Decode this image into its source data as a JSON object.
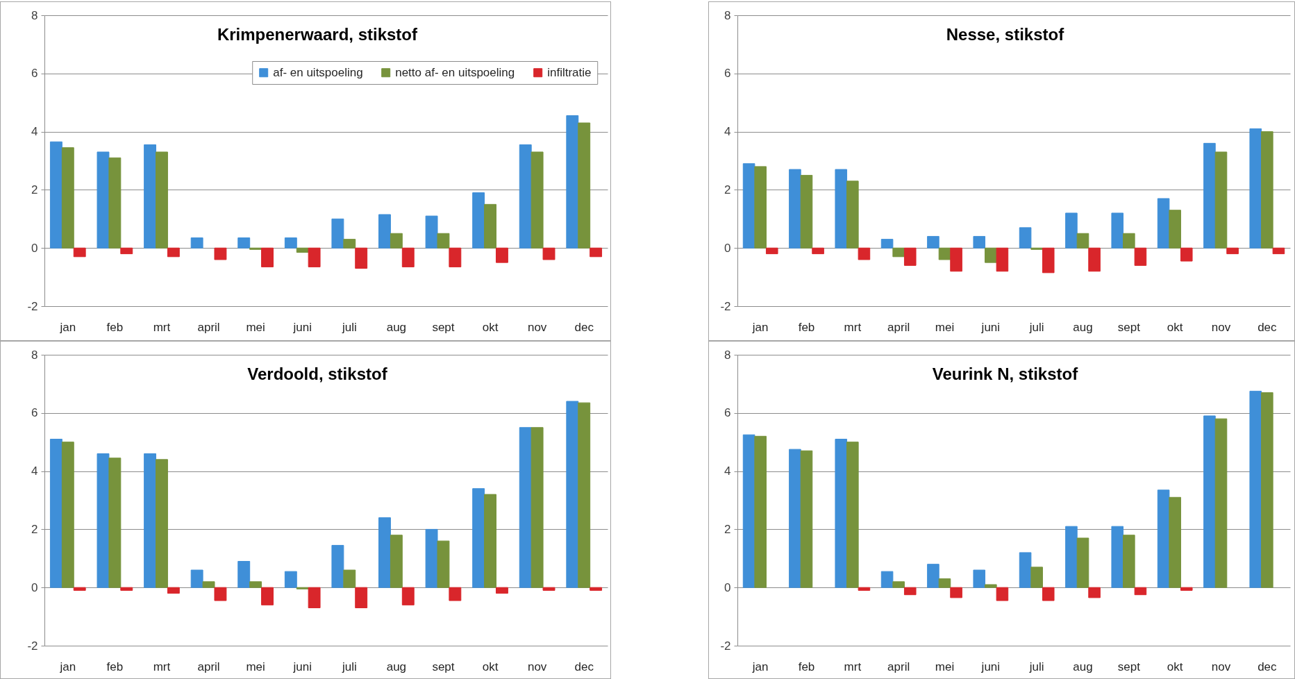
{
  "chart_data": [
    {
      "type": "bar",
      "title": "Krimpenerwaard, stikstof",
      "categories": [
        "jan",
        "feb",
        "mrt",
        "april",
        "mei",
        "juni",
        "juli",
        "aug",
        "sept",
        "okt",
        "nov",
        "dec"
      ],
      "series": [
        {
          "name": "af- en uitspoeling",
          "color": "#3f8fd8",
          "values": [
            3.65,
            3.3,
            3.55,
            0.35,
            0.35,
            0.35,
            1.0,
            1.15,
            1.1,
            1.9,
            3.55,
            4.55
          ]
        },
        {
          "name": "netto af- en uitspoeling",
          "color": "#77933c",
          "values": [
            3.45,
            3.1,
            3.3,
            null,
            -0.05,
            -0.15,
            0.3,
            0.5,
            0.5,
            1.5,
            3.3,
            4.3
          ]
        },
        {
          "name": "infiltratie",
          "color": "#d9262b",
          "values": [
            -0.3,
            -0.2,
            -0.3,
            -0.4,
            -0.65,
            -0.65,
            -0.7,
            -0.65,
            -0.65,
            -0.5,
            -0.4,
            -0.3
          ]
        }
      ],
      "ylim": [
        -2,
        8
      ],
      "yticks": [
        -2,
        0,
        2,
        4,
        6,
        8
      ],
      "grid": "y",
      "legend": "top right"
    },
    {
      "type": "bar",
      "title": "Nesse, stikstof",
      "categories": [
        "jan",
        "feb",
        "mrt",
        "april",
        "mei",
        "juni",
        "juli",
        "aug",
        "sept",
        "okt",
        "nov",
        "dec"
      ],
      "series": [
        {
          "color": "#3f8fd8",
          "values": [
            2.9,
            2.7,
            2.7,
            0.3,
            0.4,
            0.4,
            0.7,
            1.2,
            1.2,
            1.7,
            3.6,
            4.1
          ]
        },
        {
          "color": "#77933c",
          "values": [
            2.8,
            2.5,
            2.3,
            -0.3,
            -0.4,
            -0.5,
            -0.05,
            0.5,
            0.5,
            1.3,
            3.3,
            4.0
          ]
        },
        {
          "color": "#d9262b",
          "values": [
            -0.2,
            -0.2,
            -0.4,
            -0.6,
            -0.8,
            -0.8,
            -0.85,
            -0.8,
            -0.6,
            -0.45,
            -0.2,
            -0.2
          ]
        }
      ],
      "ylim": [
        -2,
        8
      ],
      "yticks": [
        -2,
        0,
        2,
        4,
        6,
        8
      ],
      "grid": "y"
    },
    {
      "type": "bar",
      "title": "Verdoold, stikstof",
      "categories": [
        "jan",
        "feb",
        "mrt",
        "april",
        "mei",
        "juni",
        "juli",
        "aug",
        "sept",
        "okt",
        "nov",
        "dec"
      ],
      "series": [
        {
          "color": "#3f8fd8",
          "values": [
            5.1,
            4.6,
            4.6,
            0.6,
            0.9,
            0.55,
            1.45,
            2.4,
            2.0,
            3.4,
            5.5,
            6.4
          ]
        },
        {
          "color": "#77933c",
          "values": [
            5.0,
            4.45,
            4.4,
            0.2,
            0.2,
            -0.05,
            0.6,
            1.8,
            1.6,
            3.2,
            5.5,
            6.35
          ]
        },
        {
          "color": "#d9262b",
          "values": [
            -0.1,
            -0.1,
            -0.2,
            -0.45,
            -0.6,
            -0.7,
            -0.7,
            -0.6,
            -0.45,
            -0.2,
            -0.1,
            -0.1
          ]
        }
      ],
      "ylim": [
        -2,
        8
      ],
      "yticks": [
        -2,
        0,
        2,
        4,
        6,
        8
      ],
      "grid": "y"
    },
    {
      "type": "bar",
      "title": "Veurink N, stikstof",
      "categories": [
        "jan",
        "feb",
        "mrt",
        "april",
        "mei",
        "juni",
        "juli",
        "aug",
        "sept",
        "okt",
        "nov",
        "dec"
      ],
      "series": [
        {
          "color": "#3f8fd8",
          "values": [
            5.25,
            4.75,
            5.1,
            0.55,
            0.8,
            0.6,
            1.2,
            2.1,
            2.1,
            3.35,
            5.9,
            6.75
          ]
        },
        {
          "color": "#77933c",
          "values": [
            5.2,
            4.7,
            5.0,
            0.2,
            0.3,
            0.1,
            0.7,
            1.7,
            1.8,
            3.1,
            5.8,
            6.7
          ]
        },
        {
          "color": "#d9262b",
          "values": [
            null,
            null,
            -0.1,
            -0.25,
            -0.35,
            -0.45,
            -0.45,
            -0.35,
            -0.25,
            -0.1,
            null,
            null
          ]
        }
      ],
      "ylim": [
        -2,
        8
      ],
      "yticks": [
        -2,
        0,
        2,
        4,
        6,
        8
      ],
      "grid": "y"
    }
  ]
}
